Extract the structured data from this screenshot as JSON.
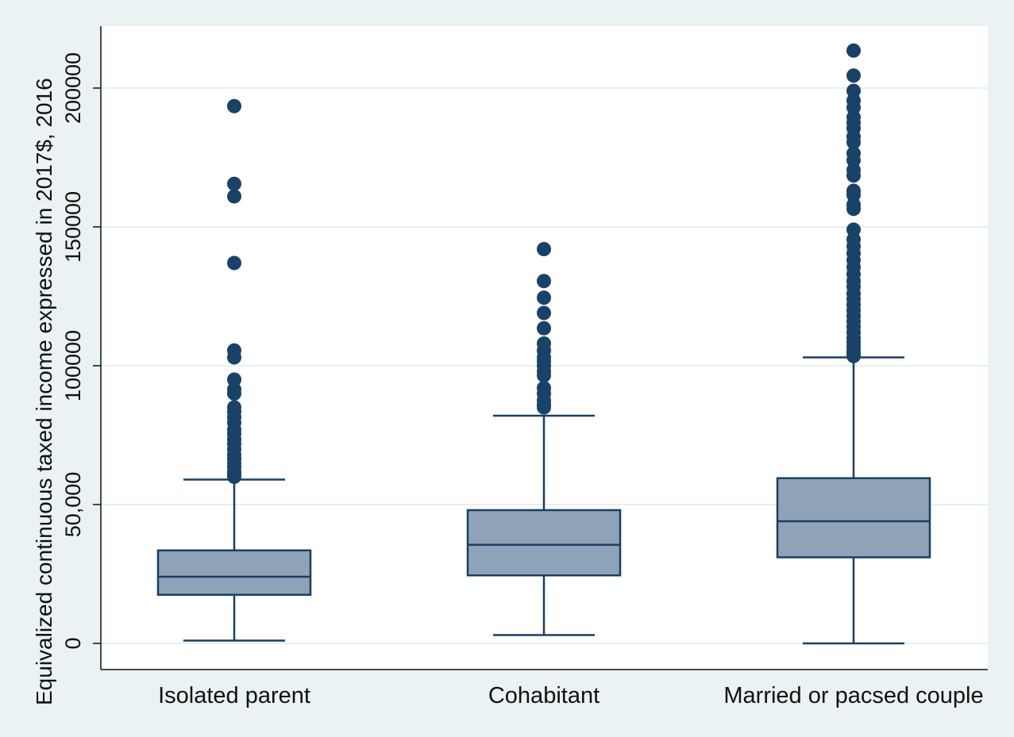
{
  "chart_data": {
    "type": "box",
    "title": "",
    "xlabel": "",
    "ylabel": "Equivalized continuous taxed income expressed in 2017$, 2016",
    "ylim": [
      -9500,
      223000
    ],
    "y_ticks": [
      {
        "value": 0,
        "label": "0"
      },
      {
        "value": 50000,
        "label": "50,000"
      },
      {
        "value": 100000,
        "label": "100000"
      },
      {
        "value": 150000,
        "label": "150000"
      },
      {
        "value": 200000,
        "label": "200000"
      }
    ],
    "grid": true,
    "colors": {
      "box_fill": "#8ea3b8",
      "box_stroke": "#1a3f63",
      "outlier": "#1a4268",
      "grid": "#e6eff1",
      "plot_bg": "#ffffff",
      "page_bg": "#eaf2f3"
    },
    "categories": [
      "Isolated parent",
      "Cohabitant",
      "Married or pacsed couple"
    ],
    "boxes": [
      {
        "category": "Isolated parent",
        "whisker_low": 1000,
        "q1": 17500,
        "median": 24000,
        "q3": 33500,
        "whisker_high": 59000,
        "outliers": [
          60000,
          61000,
          62000,
          63500,
          65000,
          66500,
          68000,
          70000,
          72000,
          73500,
          75500,
          77000,
          79500,
          81500,
          83500,
          85000,
          90000,
          91500,
          95000,
          103000,
          105500,
          137000,
          161000,
          165500,
          193500
        ]
      },
      {
        "category": "Cohabitant",
        "whisker_low": 3000,
        "q1": 24500,
        "median": 35500,
        "q3": 48000,
        "whisker_high": 82000,
        "outliers": [
          85000,
          86000,
          87500,
          90000,
          92000,
          96500,
          98000,
          100000,
          101500,
          103000,
          105500,
          108000,
          113500,
          119000,
          124500,
          130500,
          142000
        ]
      },
      {
        "category": "Married or pacsed couple",
        "whisker_low": 0,
        "q1": 31000,
        "median": 44000,
        "q3": 59500,
        "whisker_high": 103000,
        "outliers": [
          103500,
          104500,
          105500,
          107000,
          108500,
          110000,
          112000,
          114000,
          116000,
          118000,
          120000,
          122000,
          124000,
          126000,
          128500,
          130500,
          133000,
          135500,
          138000,
          140500,
          143000,
          145500,
          149000,
          156500,
          158000,
          161500,
          163000,
          168500,
          170500,
          174000,
          176500,
          180500,
          182500,
          185500,
          187500,
          189500,
          193000,
          195500,
          199000,
          204500,
          213500
        ]
      }
    ]
  }
}
